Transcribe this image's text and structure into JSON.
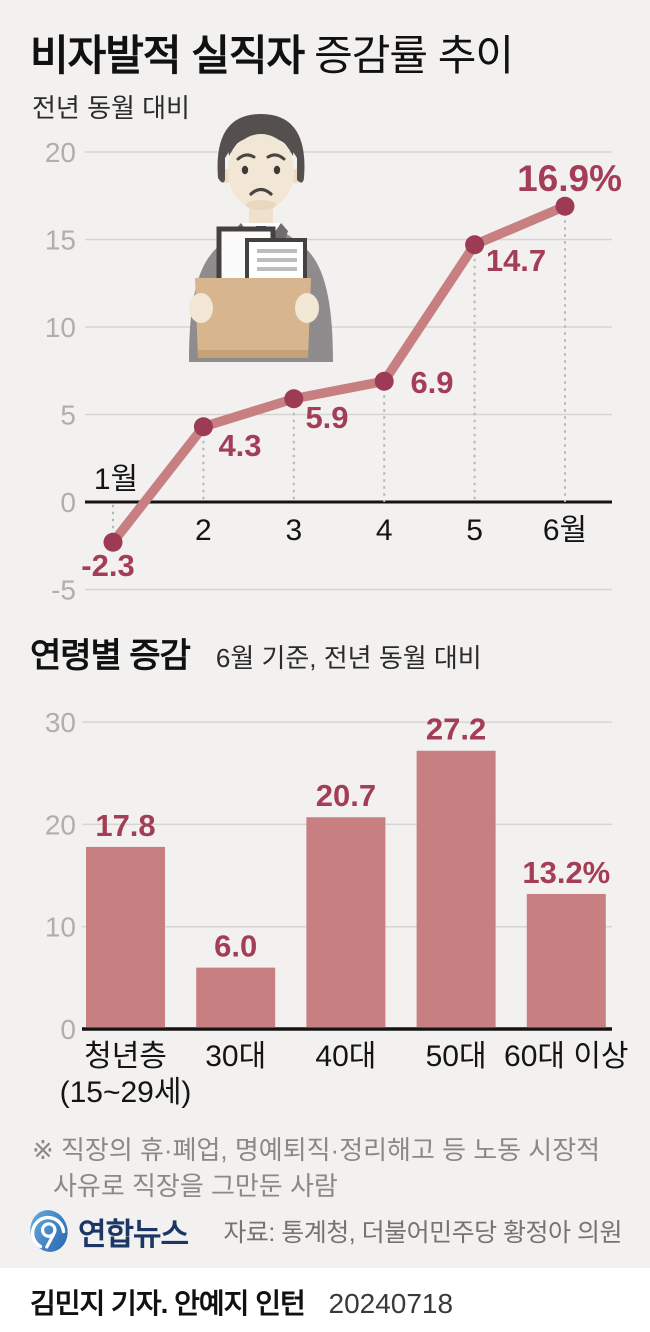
{
  "header": {
    "title_bold": "비자발적 실직자",
    "title_light": "증감률 추이",
    "subtitle": "전년 동월 대비"
  },
  "chart_data": [
    {
      "type": "line",
      "name": "involuntary-jobless-monthly-change",
      "title": "비자발적 실직자 증감률 추이",
      "subtitle": "전년 동월 대비",
      "unit": "%",
      "x_labels": [
        "1월",
        "2",
        "3",
        "4",
        "5",
        "6월"
      ],
      "values": [
        -2.3,
        4.3,
        5.9,
        6.9,
        14.7,
        16.9
      ],
      "value_labels": [
        "-2.3",
        "4.3",
        "5.9",
        "6.9",
        "14.7",
        "16.9%"
      ],
      "yticks": [
        20,
        15,
        10,
        5,
        0,
        -5
      ],
      "ylim": [
        -5,
        20
      ],
      "grid": true,
      "legend": "none"
    },
    {
      "type": "bar",
      "name": "change-by-age-group",
      "title": "연령별 증감",
      "subtitle": "6월 기준, 전년 동월 대비",
      "unit": "%",
      "categories": [
        "청년층",
        "30대",
        "40대",
        "50대",
        "60대 이상"
      ],
      "category_sublabels": [
        "(15~29세)",
        "",
        "",
        "",
        ""
      ],
      "values": [
        17.8,
        6.0,
        20.7,
        27.2,
        13.2
      ],
      "value_labels": [
        "17.8",
        "6.0",
        "20.7",
        "27.2",
        "13.2%"
      ],
      "yticks": [
        30,
        20,
        10,
        0
      ],
      "ylim": [
        0,
        30
      ],
      "grid": true,
      "legend": "none"
    }
  ],
  "footnote": {
    "line1": "※ 직장의 휴·폐업, 명예퇴직·정리해고 등 노동 시장적",
    "line2": "사유로 직장을 그만둔 사람"
  },
  "footer": {
    "logo_text": "연합뉴스",
    "source": "자료: 통계청, 더불어민주당 황정아 의원"
  },
  "byline": {
    "reporters": "김민지 기자. 안예지 인턴",
    "date": "20240718"
  },
  "colors": {
    "background": "#f2f1ef",
    "line": "#c77f82",
    "point": "#9d3a54",
    "value_label": "#a43d56",
    "bar": "#c77f82",
    "axis_zero": "#141414",
    "gridline": "#d7d5d3",
    "tick_label": "#b1aeac",
    "x_label": "#141414",
    "dotted_guide": "#b8b6b4",
    "logo_blue": "#2f6eb6",
    "logo_navy": "#1c3766"
  }
}
